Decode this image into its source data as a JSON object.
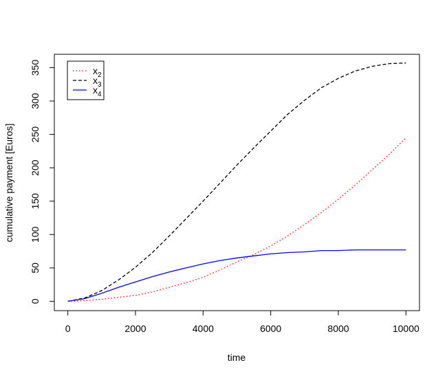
{
  "chart_data": {
    "type": "line",
    "xlabel": "time",
    "ylabel": "cumulative payment [Euros]",
    "xlim": [
      -400,
      10400
    ],
    "ylim": [
      -14,
      370
    ],
    "x_ticks": [
      0,
      2000,
      4000,
      6000,
      8000,
      10000
    ],
    "y_ticks": [
      0,
      50,
      100,
      150,
      200,
      250,
      300,
      350
    ],
    "grid": false,
    "legend_position": "top-left",
    "series": [
      {
        "name": "x2",
        "color": "#ff0000",
        "dash": "dotted",
        "x": [
          0,
          500,
          1000,
          1500,
          2000,
          2500,
          3000,
          3500,
          4000,
          4500,
          5000,
          5500,
          6000,
          6500,
          7000,
          7500,
          8000,
          8500,
          9000,
          9500,
          10000
        ],
        "y": [
          0,
          1,
          3,
          6,
          9,
          14,
          21,
          28,
          36,
          47,
          59,
          70,
          83,
          98,
          115,
          133,
          153,
          174,
          197,
          220,
          245
        ]
      },
      {
        "name": "x3",
        "color": "#000000",
        "dash": "dashed",
        "x": [
          0,
          500,
          1000,
          1500,
          2000,
          2500,
          3000,
          3500,
          4000,
          4500,
          5000,
          5500,
          6000,
          6500,
          7000,
          7500,
          8000,
          8500,
          9000,
          9500,
          10000
        ],
        "y": [
          0,
          5,
          16,
          32,
          51,
          73,
          98,
          124,
          150,
          177,
          204,
          230,
          255,
          280,
          301,
          320,
          334,
          345,
          352,
          356,
          357
        ]
      },
      {
        "name": "x4",
        "color": "#0000ff",
        "dash": "solid",
        "x": [
          0,
          500,
          1000,
          1500,
          2000,
          2500,
          3000,
          3500,
          4000,
          4500,
          5000,
          5500,
          6000,
          6500,
          7000,
          7500,
          8000,
          8500,
          9000,
          9500,
          10000
        ],
        "y": [
          0,
          4,
          12,
          21,
          29,
          37,
          44,
          50,
          56,
          61,
          65,
          68,
          71,
          73,
          74,
          76,
          76,
          77,
          77,
          77,
          77
        ]
      }
    ]
  }
}
